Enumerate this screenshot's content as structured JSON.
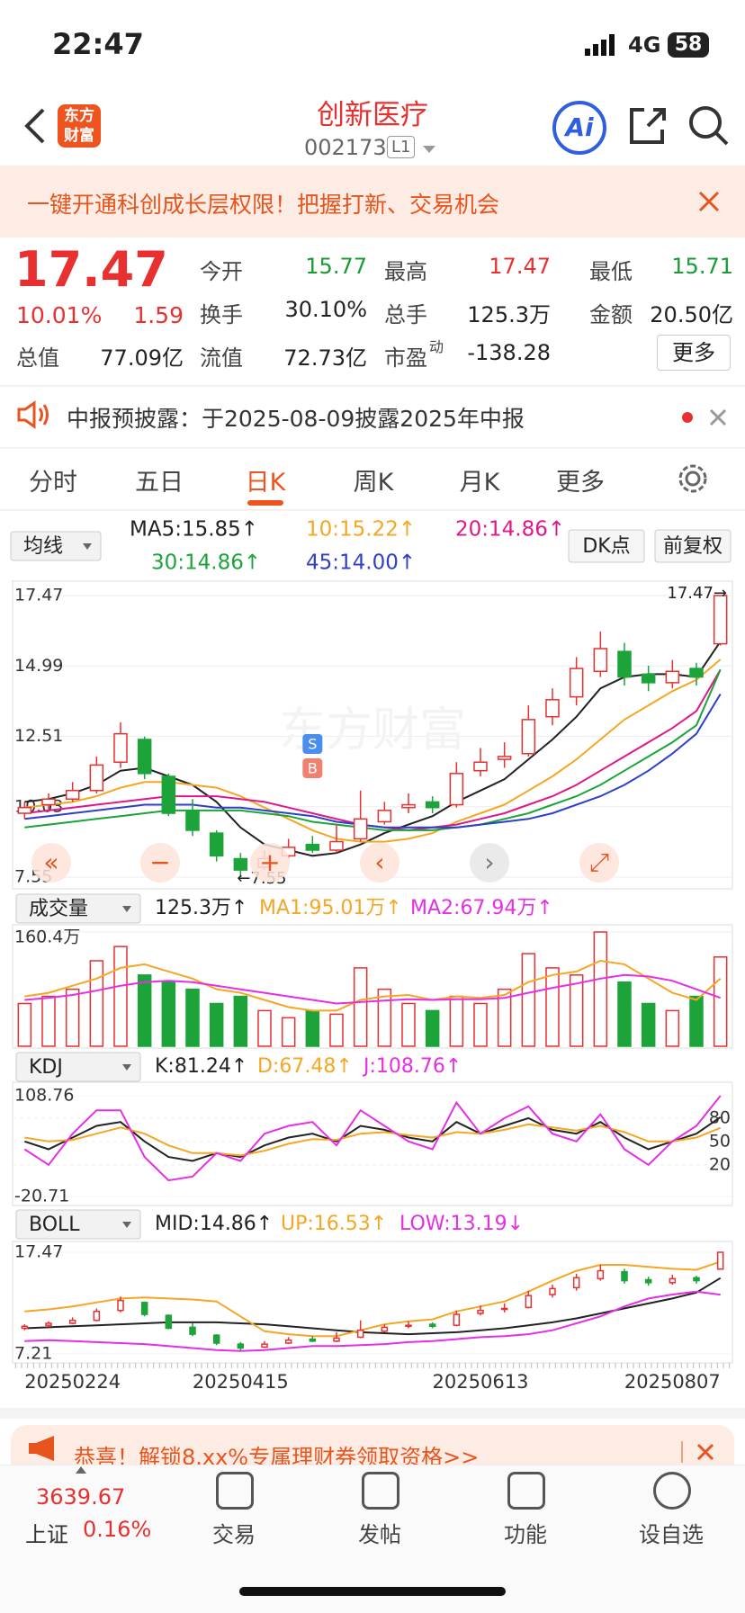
{
  "status": {
    "time": "22:47",
    "network": "4G",
    "battery": "58"
  },
  "header": {
    "logo_line1": "东方",
    "logo_line2": "财富",
    "title": "创新医疗",
    "code": "002173",
    "badge": "L1",
    "ai": "Ai"
  },
  "banner": {
    "text": "一键开通科创成长层权限！把握打新、交易机会"
  },
  "quote": {
    "price": "17.47",
    "change_pct": "10.01%",
    "change": "1.59",
    "more": "更多",
    "fields": [
      {
        "label": "今开",
        "value": "15.77",
        "color": "#1a9b35"
      },
      {
        "label": "最高",
        "value": "17.47",
        "color": "#e93030"
      },
      {
        "label": "最低",
        "value": "15.71",
        "color": "#1a9b35"
      },
      {
        "label": "换手",
        "value": "30.10%",
        "color": "#222"
      },
      {
        "label": "总手",
        "value": "125.3万",
        "color": "#222"
      },
      {
        "label": "金额",
        "value": "20.50亿",
        "color": "#222"
      },
      {
        "label": "总值",
        "value": "77.09亿",
        "color": "#222"
      },
      {
        "label": "流值",
        "value": "72.73亿",
        "color": "#222"
      },
      {
        "label": "市盈",
        "sup": "动",
        "value": "-138.28",
        "color": "#222"
      }
    ]
  },
  "notice": {
    "text": "中报预披露：于2025-08-09披露2025年中报"
  },
  "tabs": [
    "分时",
    "五日",
    "日K",
    "周K",
    "月K",
    "更多"
  ],
  "kline": {
    "selector": "均线",
    "dk": "DK点",
    "adjust": "前复权",
    "watermark": "东方财富",
    "high_label": "17.47→",
    "low_label": "←7.55",
    "sell": "S",
    "buy": "B",
    "up_color": "#e93030",
    "down_color": "#1ca43a",
    "categories": [
      null,
      null,
      "20250224",
      null,
      null,
      null,
      null,
      null,
      null,
      "20250415",
      null,
      null,
      null,
      null,
      null,
      null,
      null,
      null,
      null,
      "20250613",
      null,
      null,
      null,
      null,
      null,
      null,
      null,
      "20250807",
      null,
      null
    ],
    "ylim": [
      7.55,
      17.47
    ],
    "yticks": [
      17.47,
      14.99,
      12.51,
      10.03,
      7.55
    ],
    "candles": [
      {
        "open": 9.8,
        "close": 10.0,
        "high": 10.2,
        "low": 9.6
      },
      {
        "open": 10.1,
        "close": 10.3,
        "high": 10.5,
        "low": 9.9
      },
      {
        "open": 10.3,
        "close": 10.6,
        "high": 10.9,
        "low": 10.2
      },
      {
        "open": 10.6,
        "close": 11.5,
        "high": 11.8,
        "low": 10.5
      },
      {
        "open": 11.6,
        "close": 12.6,
        "high": 13.0,
        "low": 11.4
      },
      {
        "open": 12.4,
        "close": 11.2,
        "high": 12.5,
        "low": 11.0
      },
      {
        "open": 11.1,
        "close": 9.8,
        "high": 11.2,
        "low": 9.7
      },
      {
        "open": 9.9,
        "close": 9.2,
        "high": 10.3,
        "low": 9.0
      },
      {
        "open": 9.1,
        "close": 8.3,
        "high": 9.2,
        "low": 8.1
      },
      {
        "open": 8.2,
        "close": 7.8,
        "high": 8.4,
        "low": 7.55
      },
      {
        "open": 7.9,
        "close": 8.2,
        "high": 8.5,
        "low": 7.8
      },
      {
        "open": 8.3,
        "close": 8.6,
        "high": 8.9,
        "low": 8.2
      },
      {
        "open": 8.7,
        "close": 8.5,
        "high": 9.0,
        "low": 8.4
      },
      {
        "open": 8.5,
        "close": 8.8,
        "high": 9.4,
        "low": 8.4
      },
      {
        "open": 8.9,
        "close": 9.6,
        "high": 10.6,
        "low": 8.8
      },
      {
        "open": 9.5,
        "close": 9.9,
        "high": 10.2,
        "low": 9.4
      },
      {
        "open": 10.0,
        "close": 10.1,
        "high": 10.5,
        "low": 9.8
      },
      {
        "open": 10.2,
        "close": 10.0,
        "high": 10.4,
        "low": 9.8
      },
      {
        "open": 10.1,
        "close": 11.2,
        "high": 11.6,
        "low": 10.0
      },
      {
        "open": 11.3,
        "close": 11.6,
        "high": 12.1,
        "low": 11.1
      },
      {
        "open": 11.7,
        "close": 11.8,
        "high": 12.3,
        "low": 11.4
      },
      {
        "open": 11.9,
        "close": 13.1,
        "high": 13.6,
        "low": 11.8
      },
      {
        "open": 13.2,
        "close": 13.8,
        "high": 14.2,
        "low": 12.9
      },
      {
        "open": 13.9,
        "close": 14.9,
        "high": 15.3,
        "low": 13.6
      },
      {
        "open": 14.8,
        "close": 15.6,
        "high": 16.2,
        "low": 14.6
      },
      {
        "open": 15.5,
        "close": 14.6,
        "high": 15.8,
        "low": 14.3
      },
      {
        "open": 14.7,
        "close": 14.4,
        "high": 15.0,
        "low": 14.1
      },
      {
        "open": 14.4,
        "close": 14.8,
        "high": 15.2,
        "low": 14.2
      },
      {
        "open": 14.9,
        "close": 14.6,
        "high": 15.1,
        "low": 14.3
      },
      {
        "open": 15.77,
        "close": 17.47,
        "high": 17.47,
        "low": 15.71
      }
    ],
    "ma": [
      {
        "name": "MA5:15.85↑",
        "color": "#222222",
        "values": [
          10.2,
          10.3,
          10.5,
          10.8,
          11.3,
          11.4,
          11.1,
          10.8,
          10.2,
          9.3,
          8.7,
          8.5,
          8.3,
          8.4,
          8.7,
          9.1,
          9.4,
          9.7,
          10.2,
          10.6,
          11.0,
          11.7,
          12.4,
          13.2,
          14.2,
          14.6,
          14.7,
          14.7,
          14.6,
          15.85
        ]
      },
      {
        "name": "10:15.22↑",
        "color": "#f5a623",
        "values": [
          10.0,
          10.1,
          10.2,
          10.4,
          10.7,
          10.9,
          10.9,
          10.8,
          10.7,
          10.4,
          10.0,
          9.6,
          9.2,
          8.9,
          8.8,
          8.8,
          8.9,
          9.1,
          9.5,
          9.8,
          10.1,
          10.6,
          11.1,
          11.7,
          12.4,
          13.1,
          13.6,
          14.1,
          14.5,
          15.22
        ]
      },
      {
        "name": "20:14.86↑",
        "color": "#e0178a",
        "values": [
          9.8,
          9.9,
          10.0,
          10.1,
          10.2,
          10.3,
          10.4,
          10.4,
          10.4,
          10.3,
          10.2,
          10.0,
          9.8,
          9.6,
          9.4,
          9.3,
          9.2,
          9.3,
          9.4,
          9.6,
          9.8,
          10.1,
          10.4,
          10.8,
          11.3,
          11.8,
          12.3,
          12.8,
          13.4,
          14.86
        ]
      },
      {
        "name": "30:14.86↑",
        "color": "#1ca43a",
        "values": [
          9.3,
          9.4,
          9.5,
          9.6,
          9.7,
          9.8,
          9.9,
          9.9,
          9.9,
          9.9,
          9.8,
          9.7,
          9.5,
          9.4,
          9.3,
          9.2,
          9.2,
          9.2,
          9.3,
          9.4,
          9.6,
          9.8,
          10.1,
          10.4,
          10.8,
          11.3,
          11.8,
          12.3,
          12.9,
          14.86
        ]
      },
      {
        "name": "45:14.00↑",
        "color": "#2f3fc8",
        "values": [
          9.6,
          9.7,
          9.8,
          9.9,
          10.0,
          10.1,
          10.1,
          10.1,
          10.0,
          10.0,
          9.9,
          9.8,
          9.7,
          9.5,
          9.4,
          9.3,
          9.3,
          9.3,
          9.3,
          9.4,
          9.5,
          9.6,
          9.8,
          10.1,
          10.4,
          10.8,
          11.3,
          11.9,
          12.6,
          14.0
        ]
      }
    ]
  },
  "volume": {
    "title": "成交量",
    "current": "125.3万↑",
    "ylim": [
      0,
      160.4
    ],
    "yticks": [
      {
        "value": 160.4,
        "label": "160.4万"
      }
    ],
    "values": [
      60,
      70,
      80,
      120,
      140,
      100,
      90,
      80,
      60,
      70,
      50,
      40,
      50,
      45,
      110,
      80,
      60,
      50,
      70,
      60,
      80,
      130,
      110,
      100,
      160.4,
      90,
      60,
      50,
      70,
      125.3
    ],
    "ma": [
      {
        "name": "MA1:95.01万↑",
        "color": "#f5a623",
        "values": [
          70,
          75,
          85,
          95,
          110,
          115,
          105,
          95,
          80,
          75,
          65,
          55,
          50,
          50,
          65,
          70,
          72,
          65,
          70,
          68,
          72,
          90,
          100,
          105,
          120,
          115,
          95,
          75,
          65,
          95.01
        ]
      },
      {
        "name": "MA2:67.94万↑",
        "color": "#e52ee5",
        "values": [
          65,
          68,
          72,
          78,
          85,
          90,
          92,
          90,
          85,
          80,
          75,
          70,
          65,
          60,
          62,
          64,
          66,
          65,
          66,
          66,
          68,
          75,
          82,
          88,
          95,
          100,
          98,
          92,
          80,
          67.94
        ]
      }
    ]
  },
  "kdj": {
    "title": "KDJ",
    "ylim": [
      -20.71,
      108.76
    ],
    "yticks": [
      108.76,
      -20.71
    ],
    "right_ticks": [
      80,
      50,
      20
    ],
    "series": [
      {
        "name": "K:81.24↑",
        "color": "#222222",
        "values": [
          50,
          40,
          55,
          70,
          75,
          50,
          30,
          25,
          35,
          30,
          45,
          55,
          60,
          50,
          70,
          65,
          55,
          50,
          75,
          60,
          70,
          80,
          65,
          60,
          75,
          55,
          40,
          50,
          60,
          81.24
        ]
      },
      {
        "name": "D:67.48↑",
        "color": "#f5a623",
        "values": [
          55,
          50,
          52,
          60,
          68,
          60,
          45,
          35,
          35,
          32,
          38,
          47,
          53,
          52,
          60,
          62,
          58,
          55,
          62,
          60,
          65,
          72,
          68,
          64,
          70,
          62,
          50,
          50,
          55,
          67.48
        ]
      },
      {
        "name": "J:108.76↑",
        "color": "#e52ee5",
        "values": [
          40,
          20,
          60,
          90,
          90,
          30,
          0,
          5,
          35,
          25,
          60,
          70,
          75,
          45,
          90,
          70,
          50,
          40,
          100,
          60,
          80,
          95,
          60,
          50,
          85,
          40,
          20,
          50,
          70,
          108.76
        ]
      }
    ]
  },
  "boll": {
    "title": "BOLL",
    "ylim": [
      7.21,
      17.47
    ],
    "yticks": [
      17.47,
      7.21
    ],
    "series": [
      {
        "name": "MID:14.86↑",
        "color": "#222222",
        "values": [
          9.8,
          9.9,
          10.0,
          10.1,
          10.2,
          10.3,
          10.4,
          10.4,
          10.4,
          10.3,
          10.2,
          10.0,
          9.8,
          9.6,
          9.4,
          9.3,
          9.2,
          9.3,
          9.4,
          9.6,
          9.8,
          10.1,
          10.4,
          10.8,
          11.3,
          11.8,
          12.3,
          12.8,
          13.4,
          14.86
        ]
      },
      {
        "name": "UP:16.53↑",
        "color": "#f5a623",
        "values": [
          11.5,
          11.7,
          12.0,
          12.4,
          12.8,
          12.9,
          12.8,
          12.7,
          12.5,
          11.0,
          9.5,
          9.2,
          9.0,
          9.0,
          9.6,
          10.2,
          10.5,
          10.7,
          11.5,
          12.0,
          12.5,
          13.5,
          14.6,
          15.6,
          16.2,
          16.2,
          16.0,
          15.8,
          15.7,
          16.53
        ]
      },
      {
        "name": "LOW:13.19↓",
        "color": "#e52ee5",
        "values": [
          8.5,
          8.6,
          8.5,
          8.4,
          8.3,
          8.2,
          8.0,
          7.8,
          7.6,
          7.5,
          7.6,
          7.8,
          8.0,
          8.0,
          8.1,
          8.2,
          8.4,
          8.5,
          8.7,
          8.9,
          9.0,
          9.2,
          9.6,
          10.3,
          11.0,
          12.0,
          12.8,
          13.2,
          13.5,
          13.19
        ]
      }
    ]
  },
  "ad": {
    "text": "恭喜！解锁8.xx%专属理财券领取资格>>"
  },
  "nav": {
    "index_value": "3639.67",
    "index_name": "上证",
    "index_change": "0.16%",
    "items": [
      "交易",
      "发帖",
      "功能",
      "设自选"
    ]
  }
}
